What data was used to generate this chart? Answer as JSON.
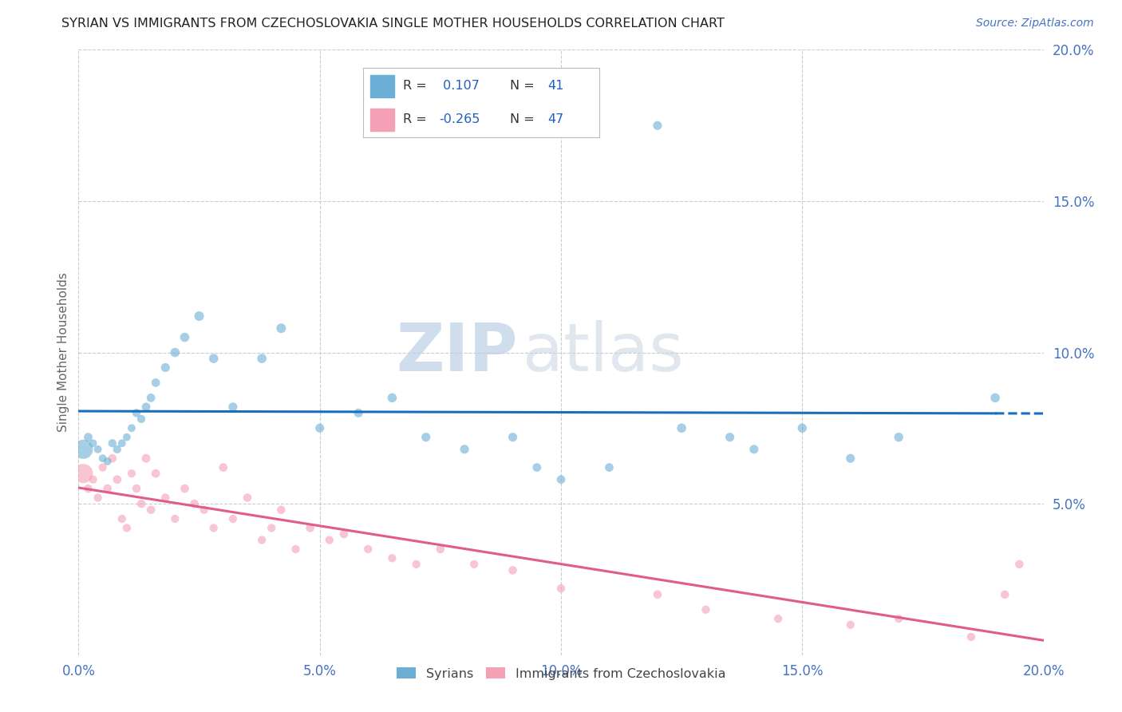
{
  "title": "SYRIAN VS IMMIGRANTS FROM CZECHOSLOVAKIA SINGLE MOTHER HOUSEHOLDS CORRELATION CHART",
  "source": "Source: ZipAtlas.com",
  "ylabel": "Single Mother Households",
  "xlim": [
    0.0,
    0.2
  ],
  "ylim": [
    0.0,
    0.2
  ],
  "yticks": [
    0.0,
    0.05,
    0.1,
    0.15,
    0.2
  ],
  "xticks": [
    0.0,
    0.05,
    0.1,
    0.15,
    0.2
  ],
  "ytick_labels": [
    "",
    "5.0%",
    "10.0%",
    "15.0%",
    "20.0%"
  ],
  "xtick_labels": [
    "0.0%",
    "5.0%",
    "10.0%",
    "15.0%",
    "20.0%"
  ],
  "syrian_color": "#6baed6",
  "czech_color": "#f4a0b5",
  "syrian_line_color": "#1a6fba",
  "czech_line_color": "#e05c8a",
  "syrian_R": "0.107",
  "syrian_N": "41",
  "czech_R": "-0.265",
  "czech_N": "47",
  "rv_color": "#2060c0",
  "watermark_color": "#c8d8ea",
  "background_color": "#ffffff",
  "grid_color": "#c0c8d0",
  "title_color": "#222222",
  "axis_label_color": "#666666",
  "tick_color": "#4472c4",
  "syrian_scatter_x": [
    0.001,
    0.002,
    0.003,
    0.004,
    0.005,
    0.006,
    0.007,
    0.008,
    0.009,
    0.01,
    0.011,
    0.012,
    0.013,
    0.014,
    0.015,
    0.016,
    0.018,
    0.02,
    0.022,
    0.025,
    0.028,
    0.032,
    0.038,
    0.042,
    0.05,
    0.058,
    0.065,
    0.072,
    0.08,
    0.09,
    0.095,
    0.1,
    0.11,
    0.12,
    0.125,
    0.135,
    0.14,
    0.15,
    0.16,
    0.17,
    0.19
  ],
  "syrian_scatter_y": [
    0.068,
    0.072,
    0.07,
    0.068,
    0.065,
    0.064,
    0.07,
    0.068,
    0.07,
    0.072,
    0.075,
    0.08,
    0.078,
    0.082,
    0.085,
    0.09,
    0.095,
    0.1,
    0.105,
    0.112,
    0.098,
    0.082,
    0.098,
    0.108,
    0.075,
    0.08,
    0.085,
    0.072,
    0.068,
    0.072,
    0.062,
    0.058,
    0.062,
    0.175,
    0.075,
    0.072,
    0.068,
    0.075,
    0.065,
    0.072,
    0.085
  ],
  "syrian_scatter_s": [
    300,
    60,
    50,
    50,
    50,
    50,
    55,
    55,
    50,
    50,
    50,
    55,
    55,
    60,
    60,
    60,
    65,
    70,
    70,
    75,
    70,
    65,
    70,
    75,
    65,
    65,
    70,
    65,
    65,
    65,
    60,
    60,
    60,
    65,
    70,
    65,
    65,
    68,
    65,
    68,
    70
  ],
  "czech_scatter_x": [
    0.001,
    0.002,
    0.003,
    0.004,
    0.005,
    0.006,
    0.007,
    0.008,
    0.009,
    0.01,
    0.011,
    0.012,
    0.013,
    0.014,
    0.015,
    0.016,
    0.018,
    0.02,
    0.022,
    0.024,
    0.026,
    0.028,
    0.03,
    0.032,
    0.035,
    0.038,
    0.04,
    0.042,
    0.045,
    0.048,
    0.052,
    0.055,
    0.06,
    0.065,
    0.07,
    0.075,
    0.082,
    0.09,
    0.1,
    0.12,
    0.13,
    0.145,
    0.16,
    0.17,
    0.185,
    0.192,
    0.195
  ],
  "czech_scatter_y": [
    0.06,
    0.055,
    0.058,
    0.052,
    0.062,
    0.055,
    0.065,
    0.058,
    0.045,
    0.042,
    0.06,
    0.055,
    0.05,
    0.065,
    0.048,
    0.06,
    0.052,
    0.045,
    0.055,
    0.05,
    0.048,
    0.042,
    0.062,
    0.045,
    0.052,
    0.038,
    0.042,
    0.048,
    0.035,
    0.042,
    0.038,
    0.04,
    0.035,
    0.032,
    0.03,
    0.035,
    0.03,
    0.028,
    0.022,
    0.02,
    0.015,
    0.012,
    0.01,
    0.012,
    0.006,
    0.02,
    0.03
  ],
  "czech_scatter_s": [
    300,
    60,
    55,
    55,
    55,
    60,
    60,
    60,
    55,
    55,
    55,
    58,
    58,
    62,
    58,
    60,
    58,
    55,
    60,
    58,
    55,
    55,
    60,
    55,
    58,
    55,
    55,
    58,
    55,
    58,
    55,
    58,
    55,
    55,
    55,
    58,
    55,
    58,
    55,
    58,
    55,
    55,
    55,
    55,
    55,
    58,
    58
  ]
}
